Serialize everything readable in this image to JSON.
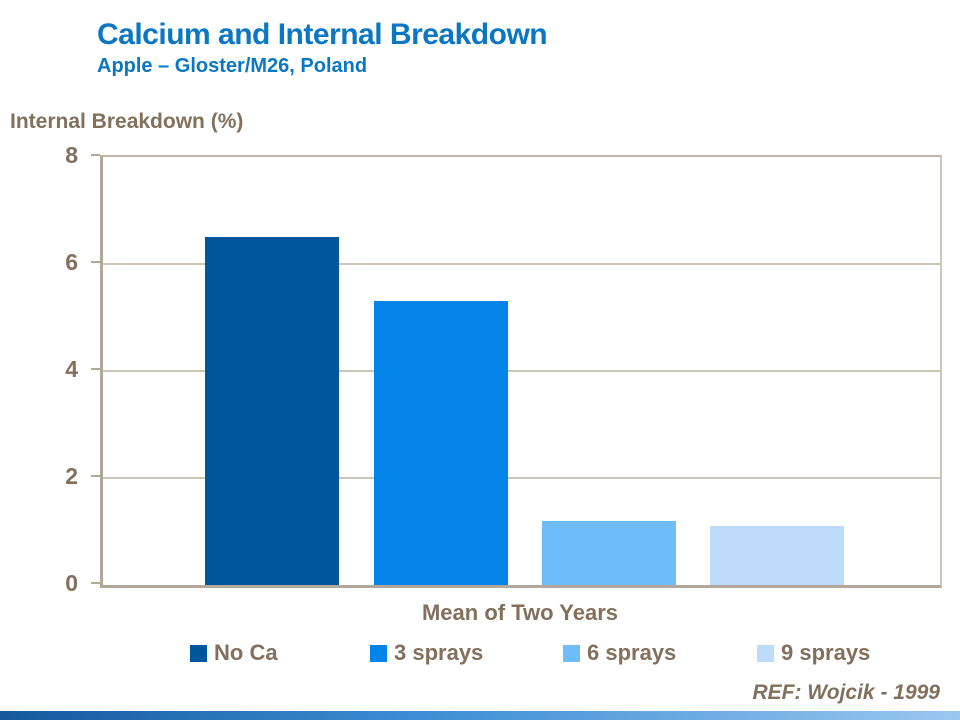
{
  "header": {
    "title": "Calcium and Internal Breakdown",
    "subtitle": "Apple – Gloster/M26, Poland"
  },
  "ref_note": "REF: Wojcik - 1999",
  "colors": {
    "title_blue": "#0B77C4",
    "text_brown": "#82705C",
    "axis_line": "#B2A79B",
    "gridline": "#BFB5A8",
    "gridline_light": "#CDC5B8",
    "footer_left": "#15589E",
    "footer_mid": "#3F8FD6",
    "footer_right": "#9AC7EF"
  },
  "chart_data": {
    "type": "bar",
    "title": "Calcium and Internal Breakdown",
    "subtitle": "Apple – Gloster/M26, Poland",
    "categories": [
      "Mean of Two Years"
    ],
    "series": [
      {
        "name": "No Ca",
        "color": "#00569B",
        "values": [
          6.5
        ]
      },
      {
        "name": "3 sprays",
        "color": "#0484E8",
        "values": [
          5.3
        ]
      },
      {
        "name": "6 sprays",
        "color": "#6FBCFA",
        "values": [
          1.2
        ]
      },
      {
        "name": "9 sprays",
        "color": "#BDDCFB",
        "values": [
          1.1
        ]
      }
    ],
    "xlabel": "Mean of Two Years",
    "ylabel": "Internal Breakdown (%)",
    "ylim": [
      0,
      8
    ],
    "yticks": [
      0,
      2,
      4,
      6,
      8
    ],
    "grid": true,
    "legend_position": "bottom"
  }
}
